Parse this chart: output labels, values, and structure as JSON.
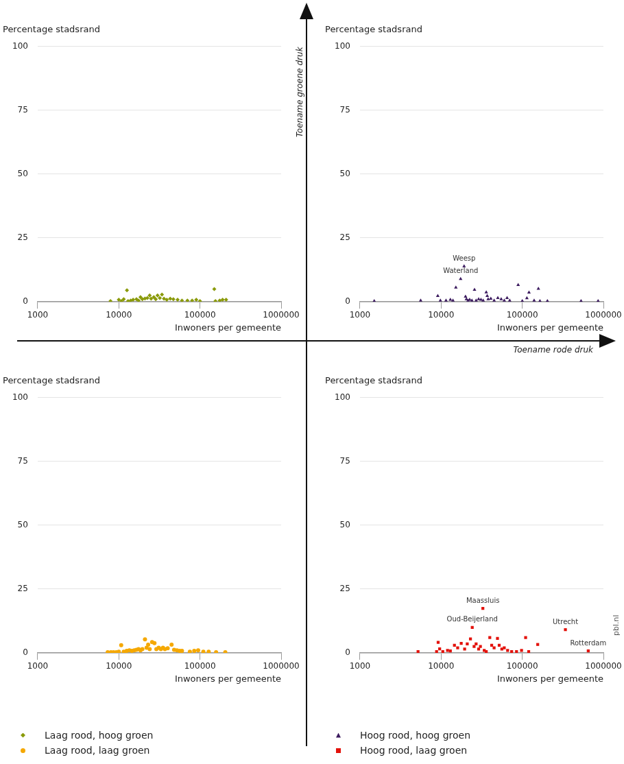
{
  "chart_data": [
    {
      "type": "scatter",
      "ylabel": "Percentage stadsrand",
      "xlabel": "Inwoners per gemeente",
      "log": "x",
      "xlim": [
        1000,
        1000000
      ],
      "xticks": [
        1000,
        10000,
        100000,
        1000000
      ],
      "ylim": [
        0,
        100
      ],
      "yticks": [
        0,
        25,
        50,
        75,
        100
      ],
      "grid": "y",
      "marker": "diamond",
      "legend": "bottom",
      "series": [
        {
          "name": "Laag rood, hoog groen",
          "color": "#8a9a0a",
          "x": [
            7900,
            10000,
            10800,
            11500,
            12600,
            13000,
            14000,
            15000,
            16500,
            17500,
            18500,
            19500,
            21000,
            22500,
            24000,
            25000,
            27000,
            28500,
            30000,
            32000,
            34000,
            36000,
            39000,
            43000,
            47000,
            53000,
            60000,
            70000,
            80000,
            90000,
            100000,
            150000,
            155000,
            175000,
            190000,
            210000
          ],
          "values": [
            0.3,
            0.8,
            0.3,
            1,
            4.5,
            0.3,
            0.5,
            0.8,
            1,
            0.5,
            1.8,
            1,
            1.3,
            1.5,
            2.5,
            1.2,
            1.8,
            1,
            2.5,
            1.5,
            2.8,
            1.2,
            0.8,
            1.2,
            1,
            0.8,
            0.5,
            0.5,
            0.5,
            0.8,
            0.3,
            5,
            0.3,
            0.5,
            0.8,
            0.8
          ]
        }
      ]
    },
    {
      "type": "scatter",
      "ylabel": "Percentage stadsrand",
      "xlabel": "Inwoners per gemeente",
      "log": "x",
      "xlim": [
        1000,
        1000000
      ],
      "xticks": [
        1000,
        10000,
        100000,
        1000000
      ],
      "ylim": [
        0,
        100
      ],
      "yticks": [
        0,
        25,
        50,
        75,
        100
      ],
      "grid": "y",
      "marker": "triangle",
      "legend": "bottom",
      "series": [
        {
          "name": "Hoog rood, hoog groen",
          "color": "#3b1a5e",
          "x": [
            1500,
            5600,
            9100,
            9800,
            11500,
            13000,
            14000,
            15200,
            17400,
            19200,
            20000,
            20500,
            21500,
            22500,
            24000,
            25800,
            27000,
            29000,
            31000,
            33000,
            36000,
            37000,
            38000,
            41000,
            45000,
            50000,
            55000,
            60000,
            65000,
            70000,
            89000,
            100000,
            114000,
            121000,
            140000,
            158000,
            165000,
            204000,
            530000,
            860000
          ],
          "values": [
            0.3,
            0.5,
            2.3,
            0.5,
            0.5,
            0.8,
            0.5,
            5.6,
            8.9,
            13.9,
            2,
            1,
            0.5,
            0.8,
            0.5,
            4.7,
            0.5,
            1,
            0.8,
            0.5,
            3.7,
            2.3,
            1,
            1.2,
            0.5,
            1.5,
            1,
            0.5,
            1.5,
            0.5,
            6.6,
            0.3,
            1.4,
            3.6,
            0.5,
            5.1,
            0.3,
            0.3,
            0.3,
            0.3
          ]
        }
      ],
      "annotations": [
        {
          "text": "Waterland",
          "x": 17400,
          "y": 8.9
        },
        {
          "text": "Weesp",
          "x": 19200,
          "y": 13.9
        }
      ]
    },
    {
      "type": "scatter",
      "ylabel": "Percentage stadsrand",
      "xlabel": "Inwoners per gemeente",
      "log": "x",
      "xlim": [
        1000,
        1000000
      ],
      "xticks": [
        1000,
        10000,
        100000,
        1000000
      ],
      "ylim": [
        0,
        100
      ],
      "yticks": [
        0,
        25,
        50,
        75,
        100
      ],
      "grid": "y",
      "marker": "circle",
      "legend": "bottom",
      "series": [
        {
          "name": "Laag rood, laag groen",
          "color": "#f5a800",
          "x": [
            7300,
            8000,
            8600,
            9300,
            10000,
            10700,
            11500,
            12500,
            13500,
            14500,
            15500,
            16500,
            17500,
            18500,
            19500,
            21000,
            22000,
            23000,
            24000,
            25700,
            27500,
            29000,
            31000,
            33000,
            35000,
            37000,
            40000,
            44700,
            48000,
            52000,
            56000,
            60000,
            75000,
            85000,
            95000,
            110000,
            128000,
            158000,
            205000
          ],
          "values": [
            0.3,
            0.3,
            0.3,
            0.3,
            0.5,
            3,
            0.5,
            0.8,
            1,
            0.8,
            1,
            1.2,
            1.5,
            1,
            1.5,
            5.3,
            2,
            3.2,
            1.5,
            4.2,
            3.8,
            1.5,
            2,
            1.5,
            2,
            1.5,
            1.8,
            3.2,
            1.2,
            1,
            0.8,
            0.8,
            0.5,
            0.8,
            1,
            0.5,
            0.5,
            0.3,
            0.3
          ]
        }
      ]
    },
    {
      "type": "scatter",
      "ylabel": "Percentage stadsrand",
      "xlabel": "Inwoners per gemeente",
      "log": "x",
      "xlim": [
        1000,
        1000000
      ],
      "xticks": [
        1000,
        10000,
        100000,
        1000000
      ],
      "ylim": [
        0,
        100
      ],
      "yticks": [
        0,
        25,
        50,
        75,
        100
      ],
      "grid": "y",
      "marker": "square",
      "legend": "bottom",
      "series": [
        {
          "name": "Hoog rood, laag groen",
          "color": "#e3120b",
          "x": [
            5200,
            8800,
            9200,
            9600,
            10500,
            12000,
            13000,
            14600,
            16000,
            17700,
            19500,
            21000,
            23000,
            24200,
            25500,
            27000,
            29000,
            30500,
            32700,
            34000,
            36000,
            39800,
            42000,
            45000,
            49500,
            52000,
            56000,
            60000,
            66000,
            74000,
            85000,
            98000,
            110000,
            120000,
            155000,
            340000,
            650000
          ],
          "values": [
            0.5,
            0.5,
            4.1,
            1.6,
            0.5,
            1,
            0.8,
            3,
            2,
            3.7,
            1.5,
            3.5,
            5.5,
            10,
            2.5,
            3.5,
            1.5,
            2.5,
            17.4,
            1,
            0.5,
            6,
            3,
            2,
            5.7,
            3,
            1.5,
            2,
            1,
            0.5,
            0.5,
            1,
            6,
            0.5,
            3.3,
            9.1,
            0.8
          ]
        }
      ],
      "annotations": [
        {
          "text": "Maassluis",
          "x": 32700,
          "y": 17.4
        },
        {
          "text": "Oud-Beijerland",
          "x": 24200,
          "y": 10
        },
        {
          "text": "Utrecht",
          "x": 340000,
          "y": 9.1
        },
        {
          "text": "Rotterdam",
          "x": 650000,
          "y": 0.8
        },
        "pbl.nl"
      ]
    },
    {
      "type": "other",
      "annotations": [
        "Toename groene druk",
        "Toename rode druk"
      ]
    }
  ]
}
